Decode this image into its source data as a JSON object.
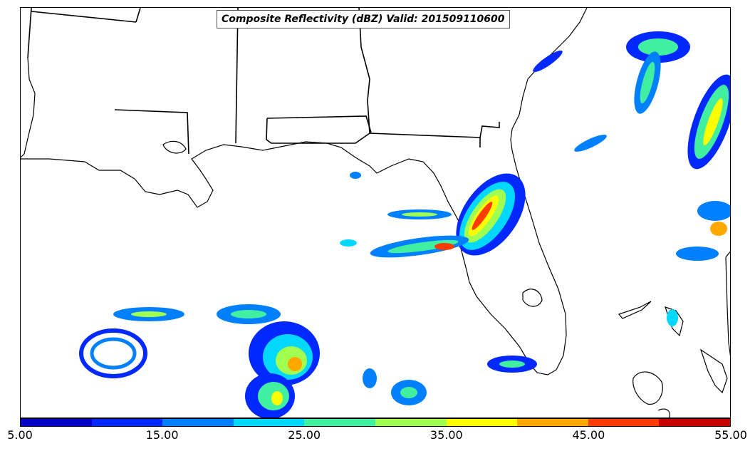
{
  "title": "Composite Reflectivity (dBZ) Valid: 201509110600",
  "colorbar": {
    "colors": [
      "#0000c8",
      "#0028ff",
      "#0080ff",
      "#00d8ff",
      "#40f0a0",
      "#a0ff50",
      "#ffff00",
      "#ffa800",
      "#ff3c00",
      "#c80000"
    ],
    "tick_labels": [
      "5.00",
      "15.00",
      "25.00",
      "35.00",
      "45.00",
      "55.00"
    ],
    "min": 5,
    "max": 55
  },
  "map": {
    "region": "Gulf of Mexico / Southeastern United States",
    "variable": "Composite Reflectivity",
    "units": "dBZ",
    "valid_time": "201509110600"
  }
}
